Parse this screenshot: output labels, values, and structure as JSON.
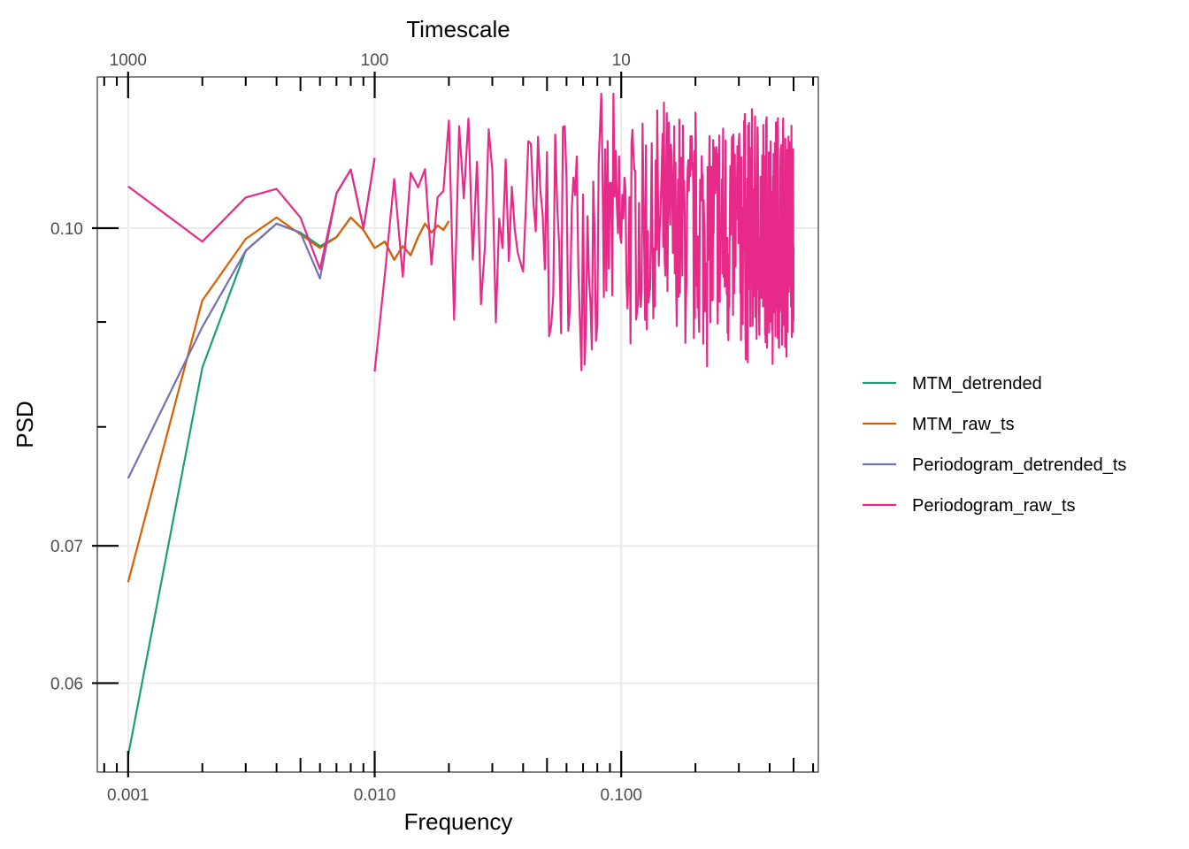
{
  "chart_data": {
    "type": "line",
    "xlabel": "Frequency",
    "x2label": "Timescale",
    "ylabel": "PSD",
    "x_scale": "log10",
    "y_scale": "log10",
    "xlim": [
      0.00075,
      0.63
    ],
    "ylim": [
      0.0543,
      0.1185
    ],
    "x_ticks": [
      0.001,
      0.01,
      0.1
    ],
    "x_tick_labels": [
      "0.001",
      "0.010",
      "0.100"
    ],
    "x2_ticks": [
      1000,
      100,
      10
    ],
    "x2_tick_labels": [
      "1000",
      "100",
      "10"
    ],
    "y_ticks": [
      0.06,
      0.07,
      0.1
    ],
    "y_tick_labels": [
      "0.06",
      "0.07",
      "0.10"
    ],
    "y_minor_ticks": [
      0.08,
      0.09
    ],
    "grid": true,
    "legend_position": "right",
    "series": [
      {
        "name": "MTM_detrended",
        "color": "#1b9e77",
        "x": [
          0.001,
          0.002,
          0.003,
          0.004,
          0.005,
          0.006,
          0.007,
          0.008,
          0.009,
          0.01,
          0.011,
          0.012,
          0.013,
          0.014,
          0.015,
          0.016,
          0.017,
          0.018,
          0.019,
          0.02
        ],
        "y": [
          0.0553,
          0.0855,
          0.0975,
          0.1005,
          0.0995,
          0.098,
          0.099,
          0.1012,
          0.0998,
          0.0978,
          0.0985,
          0.0965,
          0.098,
          0.097,
          0.099,
          0.1005,
          0.0995,
          0.1003,
          0.0998,
          0.1008
        ]
      },
      {
        "name": "MTM_raw_ts",
        "color": "#d95f02",
        "x": [
          0.001,
          0.002,
          0.003,
          0.004,
          0.005,
          0.006,
          0.007,
          0.008,
          0.009,
          0.01,
          0.011,
          0.012,
          0.013,
          0.014,
          0.015,
          0.016,
          0.017,
          0.018,
          0.019,
          0.02
        ],
        "y": [
          0.0672,
          0.0922,
          0.0988,
          0.1012,
          0.0993,
          0.0978,
          0.099,
          0.1012,
          0.0998,
          0.0978,
          0.0985,
          0.0965,
          0.098,
          0.097,
          0.099,
          0.1005,
          0.0995,
          0.1003,
          0.0998,
          0.1008
        ]
      },
      {
        "name": "Periodogram_detrended_ts",
        "color": "#7570b3",
        "x": [
          0.001,
          0.002,
          0.003,
          0.004,
          0.005,
          0.006,
          0.007,
          0.008,
          0.009,
          0.01
        ],
        "y": [
          0.0755,
          0.0895,
          0.0975,
          0.1005,
          0.0995,
          0.0945,
          0.104,
          0.1068,
          0.1,
          0.1082
        ]
      },
      {
        "name": "Periodogram_raw_ts",
        "color": "#e7298a",
        "x": [
          0.001,
          0.002,
          0.003,
          0.004,
          0.005,
          0.006,
          0.007,
          0.008,
          0.009,
          0.01
        ],
        "y": [
          0.1048,
          0.0985,
          0.1035,
          0.1045,
          0.1012,
          0.0955,
          0.104,
          0.1068,
          0.1,
          0.1082
        ]
      }
    ]
  }
}
